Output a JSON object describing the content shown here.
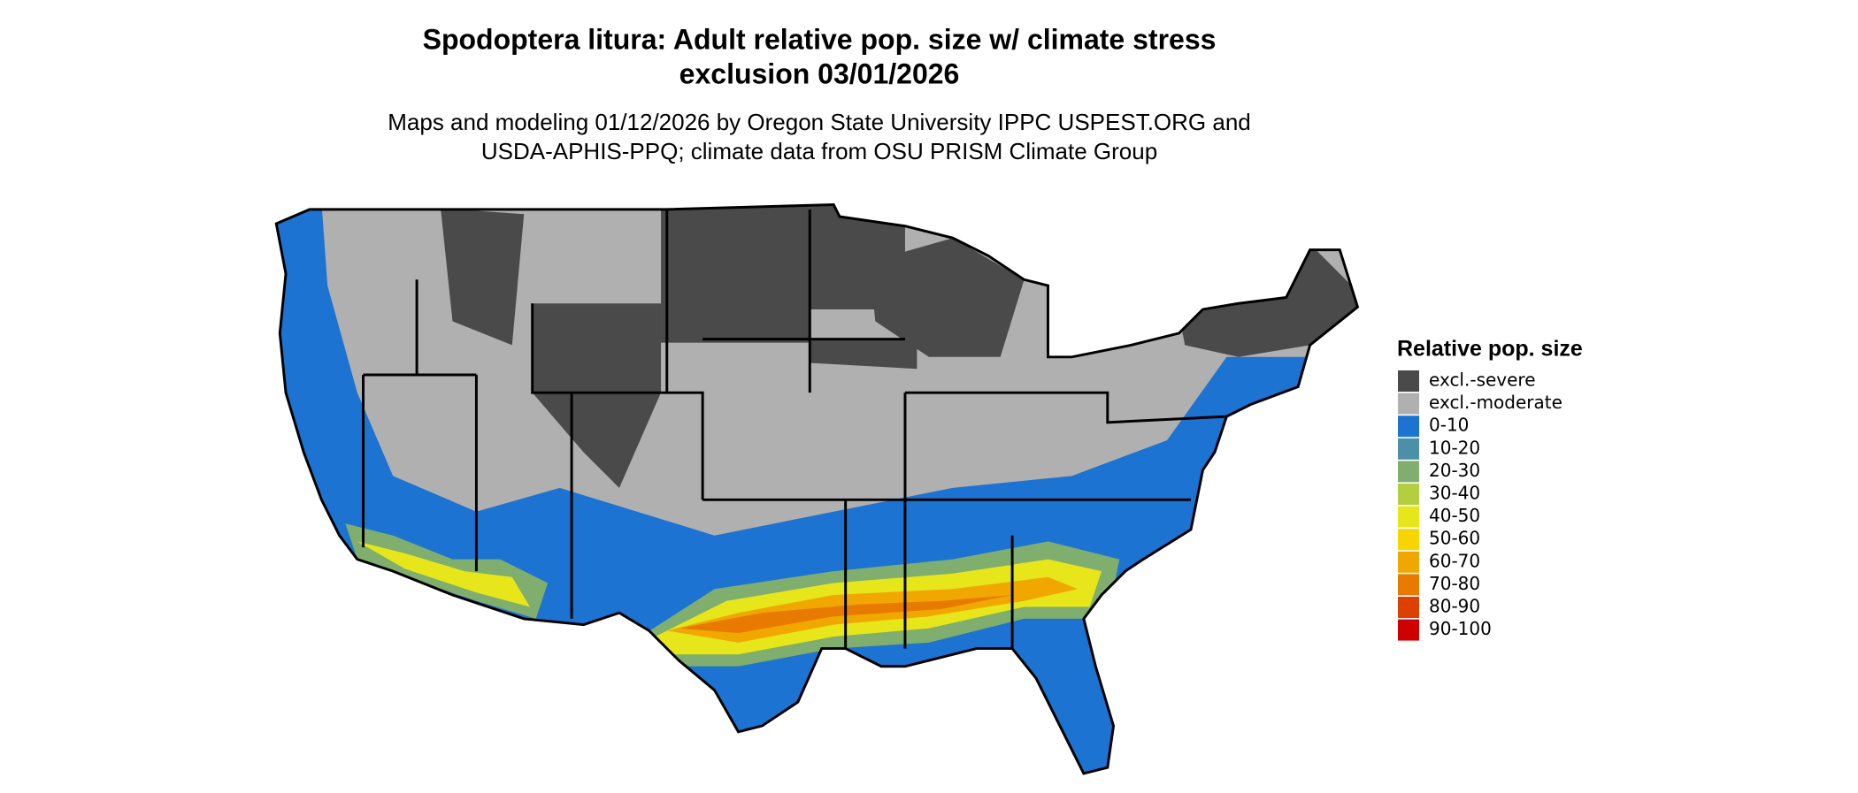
{
  "title": [
    "Spodoptera litura: Adult relative pop. size w/ climate stress",
    "exclusion 03/01/2026"
  ],
  "subtitle": [
    "Maps and modeling 01/12/2026 by Oregon State University IPPC USPEST.ORG and",
    "USDA-APHIS-PPQ; climate data from OSU PRISM Climate Group"
  ],
  "legend": {
    "title": "Relative pop. size",
    "items": [
      {
        "label": "excl.-severe",
        "color": "#4a4a4a"
      },
      {
        "label": "excl.-moderate",
        "color": "#b0b0b0"
      },
      {
        "label": "0-10",
        "color": "#1c73d2"
      },
      {
        "label": "10-20",
        "color": "#4a90a8"
      },
      {
        "label": "20-30",
        "color": "#7fae6e"
      },
      {
        "label": "30-40",
        "color": "#b3cf3f"
      },
      {
        "label": "40-50",
        "color": "#e6e61a"
      },
      {
        "label": "50-60",
        "color": "#f7d600"
      },
      {
        "label": "60-70",
        "color": "#f0a800"
      },
      {
        "label": "70-80",
        "color": "#e87a00"
      },
      {
        "label": "80-90",
        "color": "#dd4000"
      },
      {
        "label": "90-100",
        "color": "#d00000"
      }
    ]
  }
}
